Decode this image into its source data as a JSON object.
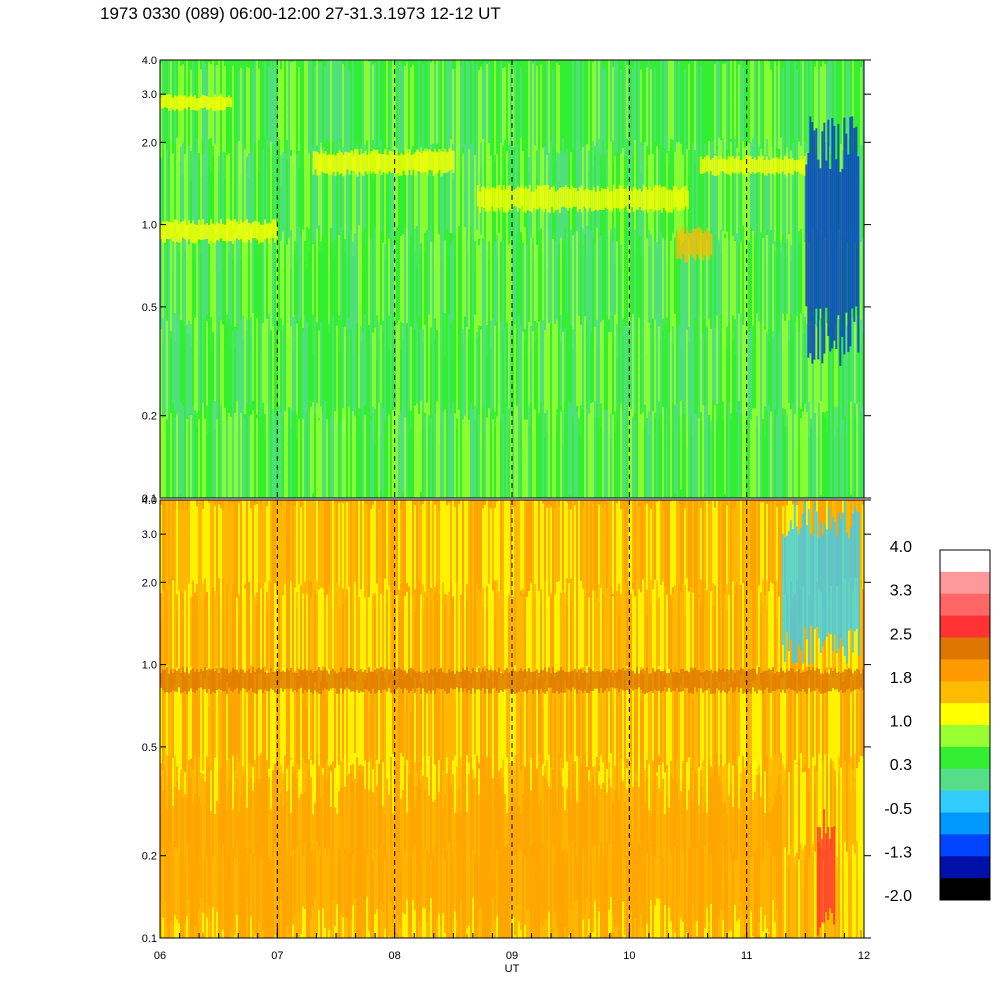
{
  "title": "1973 0330 (089) 06:00-12:00 27-31.3.1973  12-12 UT",
  "chart_data": {
    "type": "heatmap",
    "xlabel": "UT",
    "x_ticks": [
      "06",
      "07",
      "08",
      "09",
      "10",
      "11",
      "12"
    ],
    "xlim": [
      6,
      12
    ],
    "panels": [
      {
        "name": "",
        "ylim": [
          0.1,
          4.0
        ],
        "y_scale": "log",
        "y_ticks": [
          "0.1",
          "0.2",
          "0.5",
          "1.0",
          "2.0",
          "3.0",
          "4.0"
        ],
        "dominant_colors": [
          "#33ee33",
          "#99ff33",
          "#55dd88"
        ],
        "bands": [
          {
            "x_start": 6.0,
            "x_end": 6.6,
            "y_low": 2.6,
            "y_high": 3.0,
            "color": "#ffff00"
          },
          {
            "x_start": 7.3,
            "x_end": 8.5,
            "y_low": 1.5,
            "y_high": 1.9,
            "color": "#ffff00"
          },
          {
            "x_start": 8.7,
            "x_end": 10.5,
            "y_low": 1.1,
            "y_high": 1.4,
            "color": "#ffff00"
          },
          {
            "x_start": 10.4,
            "x_end": 10.7,
            "y_low": 0.72,
            "y_high": 1.0,
            "color": "#ffbb00"
          },
          {
            "x_start": 10.6,
            "x_end": 11.5,
            "y_low": 1.5,
            "y_high": 1.8,
            "color": "#ffff00"
          },
          {
            "x_start": 6.0,
            "x_end": 7.0,
            "y_low": 0.85,
            "y_high": 1.05,
            "color": "#ffff00"
          },
          {
            "x_start": 11.5,
            "x_end": 11.95,
            "y_low": 0.3,
            "y_high": 2.5,
            "color": "#0033cc"
          }
        ]
      },
      {
        "name": "",
        "ylim": [
          0.1,
          4.0
        ],
        "y_scale": "log",
        "y_ticks": [
          "0.1",
          "0.2",
          "0.5",
          "1.0",
          "2.0",
          "3.0",
          "4.0"
        ],
        "dominant_colors": [
          "#ffa500",
          "#ffbb00",
          "#ffff00"
        ],
        "bands": [
          {
            "x_start": 6.0,
            "x_end": 12.0,
            "y_low": 0.78,
            "y_high": 0.98,
            "color": "#dd7700"
          },
          {
            "x_start": 6.0,
            "x_end": 11.3,
            "y_low": 0.1,
            "y_high": 0.4,
            "color": "#ffa500"
          },
          {
            "x_start": 11.3,
            "x_end": 11.95,
            "y_low": 1.0,
            "y_high": 4.0,
            "color": "#33ccff"
          },
          {
            "x_start": 11.6,
            "x_end": 11.75,
            "y_low": 0.1,
            "y_high": 0.3,
            "color": "#ff3333"
          }
        ]
      }
    ],
    "colorbar": {
      "labels": [
        "4.0",
        "3.3",
        "2.5",
        "1.8",
        "1.0",
        "0.3",
        "-0.5",
        "-1.3",
        "-2.0"
      ],
      "colors_top_to_bottom": [
        "#ffffff",
        "#ff9999",
        "#ff6666",
        "#ff3333",
        "#dd7700",
        "#ff9900",
        "#ffbb00",
        "#ffff00",
        "#99ff33",
        "#33ee33",
        "#55dd88",
        "#33ccff",
        "#0099ff",
        "#0044ff",
        "#0011aa",
        "#000000"
      ]
    },
    "grid": "dashed vertical lines at hourly ticks"
  }
}
